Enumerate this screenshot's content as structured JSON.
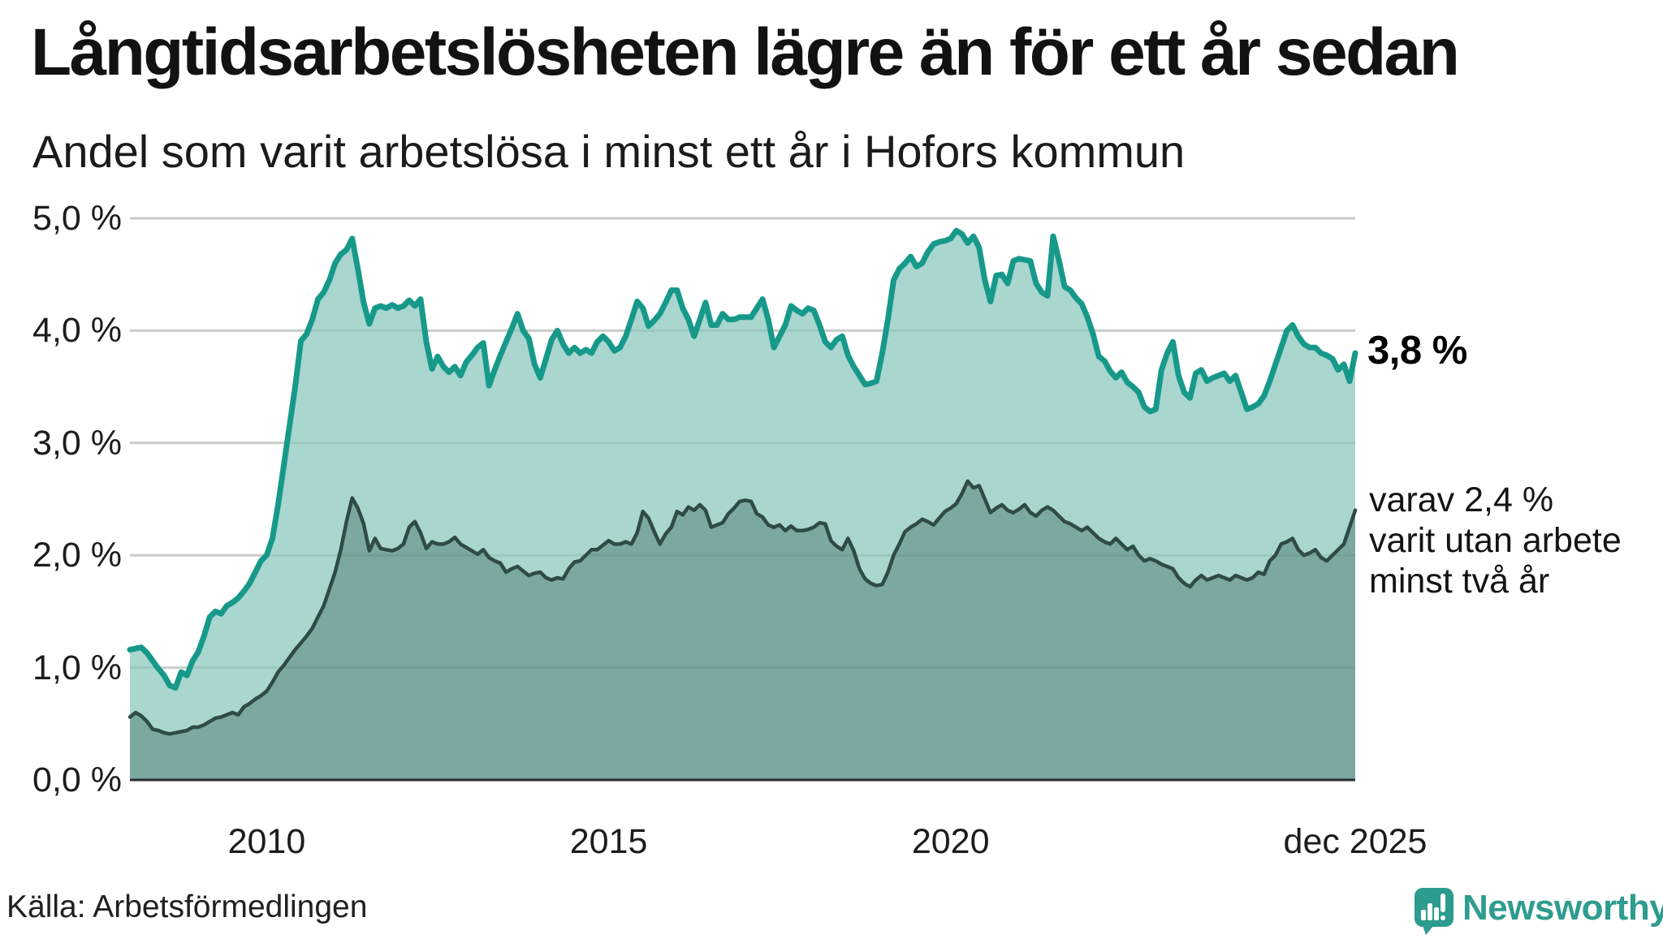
{
  "header": {
    "title": "Långtidsarbetslösheten lägre än för ett år sedan",
    "subtitle": "Andel som varit arbetslösa i minst ett år i Hofors kommun"
  },
  "annotations": {
    "latest_total": "3,8 %",
    "subset_note_lines": [
      "varav 2,4 %",
      "varit utan arbete",
      "minst två år"
    ]
  },
  "footer": {
    "source": "Källa: Arbetsförmedlingen",
    "brand": "Newsworthy"
  },
  "colors": {
    "total_line": "#17998A",
    "total_fill": "#A9D6CF",
    "subset_line": "#2F4B47",
    "subset_fill": "#7BA8A1",
    "gridline": "#DCDCDC",
    "gridline_overlay": "rgba(31,74,68,0.10)",
    "axis": "#2B2B2B",
    "brand_teal": "#2E9C8E"
  },
  "chart_data": {
    "type": "area",
    "unit": "percent",
    "start_year": 2008,
    "end_label": "dec 2025",
    "months_per_point": 1,
    "ylim": [
      0,
      5.0
    ],
    "grid": "horizontal",
    "legend_position": "none",
    "y_ticks": [
      {
        "label": "5,0 %",
        "value": 5.0
      },
      {
        "label": "4,0 %",
        "value": 4.0
      },
      {
        "label": "3,0 %",
        "value": 3.0
      },
      {
        "label": "2,0 %",
        "value": 2.0
      },
      {
        "label": "1,0 %",
        "value": 1.0
      },
      {
        "label": "0,0 %",
        "value": 0.0
      }
    ],
    "x_ticks": [
      {
        "label": "2010",
        "month_index": 24
      },
      {
        "label": "2015",
        "month_index": 84
      },
      {
        "label": "2020",
        "month_index": 144
      },
      {
        "label": "dec 2025",
        "month_index": 215
      }
    ],
    "series": [
      {
        "name": "Arbetslösa minst ett år",
        "end_value": 3.8,
        "values": [
          1.16,
          1.17,
          1.18,
          1.13,
          1.06,
          0.99,
          0.93,
          0.84,
          0.82,
          0.96,
          0.93,
          1.06,
          1.14,
          1.28,
          1.45,
          1.5,
          1.48,
          1.55,
          1.58,
          1.62,
          1.68,
          1.75,
          1.85,
          1.95,
          2.0,
          2.15,
          2.45,
          2.8,
          3.15,
          3.5,
          3.91,
          3.97,
          4.1,
          4.28,
          4.34,
          4.45,
          4.6,
          4.68,
          4.72,
          4.82,
          4.55,
          4.25,
          4.06,
          4.2,
          4.22,
          4.2,
          4.23,
          4.2,
          4.22,
          4.27,
          4.22,
          4.28,
          3.9,
          3.66,
          3.77,
          3.68,
          3.63,
          3.68,
          3.6,
          3.72,
          3.78,
          3.85,
          3.89,
          3.51,
          3.65,
          3.78,
          3.9,
          4.02,
          4.15,
          4.0,
          3.93,
          3.7,
          3.58,
          3.75,
          3.92,
          4.0,
          3.88,
          3.8,
          3.85,
          3.8,
          3.83,
          3.8,
          3.9,
          3.95,
          3.9,
          3.82,
          3.85,
          3.95,
          4.1,
          4.26,
          4.2,
          4.04,
          4.09,
          4.15,
          4.25,
          4.36,
          4.36,
          4.2,
          4.1,
          3.95,
          4.1,
          4.25,
          4.05,
          4.05,
          4.15,
          4.1,
          4.1,
          4.12,
          4.12,
          4.12,
          4.2,
          4.28,
          4.1,
          3.85,
          3.95,
          4.05,
          4.22,
          4.18,
          4.15,
          4.2,
          4.18,
          4.05,
          3.9,
          3.85,
          3.92,
          3.95,
          3.78,
          3.68,
          3.6,
          3.52,
          3.53,
          3.55,
          3.8,
          4.1,
          4.45,
          4.55,
          4.6,
          4.66,
          4.57,
          4.6,
          4.7,
          4.77,
          4.79,
          4.8,
          4.82,
          4.89,
          4.86,
          4.78,
          4.84,
          4.74,
          4.45,
          4.26,
          4.49,
          4.5,
          4.42,
          4.62,
          4.64,
          4.63,
          4.62,
          4.42,
          4.34,
          4.31,
          4.84,
          4.63,
          4.39,
          4.36,
          4.29,
          4.24,
          4.12,
          3.97,
          3.77,
          3.73,
          3.64,
          3.58,
          3.63,
          3.54,
          3.5,
          3.45,
          3.32,
          3.28,
          3.3,
          3.65,
          3.8,
          3.9,
          3.6,
          3.45,
          3.4,
          3.62,
          3.65,
          3.55,
          3.58,
          3.6,
          3.62,
          3.55,
          3.6,
          3.45,
          3.3,
          3.32,
          3.35,
          3.42,
          3.55,
          3.7,
          3.85,
          4.0,
          4.05,
          3.95,
          3.88,
          3.85,
          3.85,
          3.8,
          3.78,
          3.75,
          3.65,
          3.7,
          3.55,
          3.8
        ]
      },
      {
        "name": "varav utan arbete minst två år",
        "end_value": 2.4,
        "values": [
          0.56,
          0.6,
          0.57,
          0.52,
          0.45,
          0.44,
          0.42,
          0.41,
          0.42,
          0.43,
          0.44,
          0.47,
          0.47,
          0.49,
          0.52,
          0.55,
          0.56,
          0.58,
          0.6,
          0.58,
          0.65,
          0.68,
          0.72,
          0.75,
          0.79,
          0.87,
          0.96,
          1.02,
          1.09,
          1.16,
          1.22,
          1.28,
          1.35,
          1.45,
          1.55,
          1.7,
          1.85,
          2.05,
          2.3,
          2.51,
          2.42,
          2.28,
          2.04,
          2.15,
          2.06,
          2.05,
          2.04,
          2.06,
          2.1,
          2.25,
          2.3,
          2.2,
          2.06,
          2.12,
          2.1,
          2.1,
          2.12,
          2.16,
          2.1,
          2.07,
          2.04,
          2.01,
          2.05,
          1.98,
          1.95,
          1.93,
          1.85,
          1.88,
          1.9,
          1.86,
          1.82,
          1.84,
          1.85,
          1.8,
          1.78,
          1.8,
          1.79,
          1.88,
          1.94,
          1.95,
          2.0,
          2.05,
          2.05,
          2.09,
          2.13,
          2.1,
          2.1,
          2.12,
          2.1,
          2.2,
          2.39,
          2.33,
          2.21,
          2.1,
          2.19,
          2.25,
          2.39,
          2.36,
          2.43,
          2.4,
          2.45,
          2.4,
          2.25,
          2.27,
          2.29,
          2.37,
          2.42,
          2.48,
          2.49,
          2.48,
          2.37,
          2.34,
          2.27,
          2.25,
          2.27,
          2.22,
          2.26,
          2.22,
          2.22,
          2.23,
          2.25,
          2.29,
          2.28,
          2.13,
          2.08,
          2.05,
          2.15,
          2.04,
          1.88,
          1.79,
          1.75,
          1.73,
          1.74,
          1.85,
          2.0,
          2.1,
          2.21,
          2.25,
          2.28,
          2.32,
          2.3,
          2.27,
          2.33,
          2.39,
          2.42,
          2.46,
          2.55,
          2.66,
          2.6,
          2.62,
          2.5,
          2.38,
          2.42,
          2.45,
          2.4,
          2.38,
          2.41,
          2.45,
          2.38,
          2.35,
          2.4,
          2.43,
          2.4,
          2.35,
          2.3,
          2.28,
          2.25,
          2.22,
          2.25,
          2.2,
          2.15,
          2.12,
          2.1,
          2.15,
          2.1,
          2.05,
          2.08,
          2.0,
          1.95,
          1.97,
          1.95,
          1.92,
          1.9,
          1.88,
          1.8,
          1.75,
          1.72,
          1.78,
          1.82,
          1.78,
          1.8,
          1.82,
          1.8,
          1.78,
          1.82,
          1.8,
          1.78,
          1.8,
          1.85,
          1.83,
          1.95,
          2.0,
          2.1,
          2.12,
          2.15,
          2.05,
          2.0,
          2.02,
          2.05,
          1.98,
          1.95,
          2.0,
          2.05,
          2.1,
          2.25,
          2.4
        ]
      }
    ]
  }
}
